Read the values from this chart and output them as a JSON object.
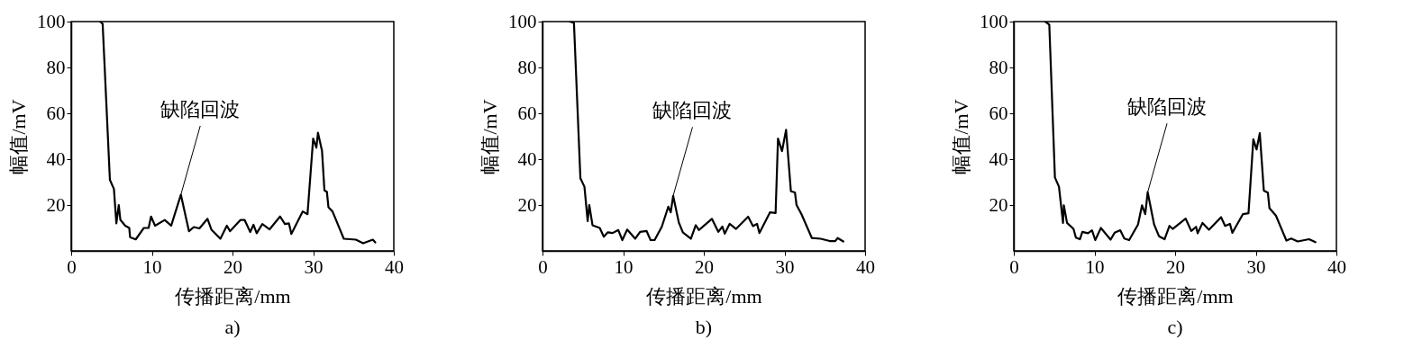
{
  "chart_data": [
    {
      "type": "line",
      "title": "a)",
      "xlabel": "传播距离/mm",
      "ylabel": "幅值/mV",
      "xlim": [
        0,
        40
      ],
      "ylim": [
        0,
        100
      ],
      "xticks": [
        0,
        10,
        20,
        30,
        40
      ],
      "yticks": [
        20,
        40,
        60,
        80,
        100
      ],
      "grid": false,
      "line_style": "solid",
      "annotations": [
        {
          "text": "缺陷回波",
          "x": 13.6,
          "y": 24.5
        }
      ],
      "series": [
        {
          "color": "#000000",
          "x": [
            3.6,
            3.9,
            4.8,
            5.3,
            5.6,
            5.9,
            6.1,
            6.7,
            7.2,
            7.3,
            8.0,
            9.0,
            9.6,
            9.9,
            10.4,
            11.6,
            12.4,
            13.6,
            14.6,
            15.2,
            15.9,
            16.9,
            17.4,
            18.5,
            19.3,
            19.7,
            21.0,
            21.5,
            22.2,
            22.6,
            23.0,
            23.7,
            24.6,
            25.9,
            26.5,
            27.0,
            27.3,
            28.7,
            29.3,
            30.0,
            30.4,
            30.6,
            31.1,
            31.4,
            31.7,
            31.9,
            32.4,
            33.8,
            35.3,
            36.2,
            37.4,
            37.7
          ],
          "values": [
            100,
            99,
            31,
            27,
            12,
            20,
            13.5,
            11,
            10,
            6,
            5,
            10,
            10,
            15,
            11,
            13.5,
            11,
            24.5,
            8.6,
            10.4,
            9.8,
            14,
            9.2,
            5.3,
            11,
            8.6,
            13.5,
            13.5,
            8.2,
            11.4,
            7.7,
            11.7,
            9.4,
            15,
            11.7,
            12,
            7.4,
            17.2,
            16,
            49,
            45,
            51.5,
            43.6,
            26.4,
            25.8,
            19,
            17.2,
            5.3,
            4.9,
            3.3,
            4.9,
            3.7
          ]
        }
      ]
    },
    {
      "type": "line",
      "title": "b)",
      "xlabel": "传播距离/mm",
      "ylabel": "幅值/mV",
      "xlim": [
        0,
        40
      ],
      "ylim": [
        0,
        100
      ],
      "xticks": [
        0,
        10,
        20,
        30,
        40
      ],
      "yticks": [
        20,
        40,
        60,
        80,
        100
      ],
      "grid": false,
      "line_style": "solid",
      "annotations": [
        {
          "text": "缺陷回波",
          "x": 16.2,
          "y": 24
        }
      ],
      "series": [
        {
          "color": "#000000",
          "x": [
            3.4,
            3.9,
            4.7,
            5.2,
            5.6,
            5.8,
            6.2,
            7.1,
            7.6,
            8.1,
            8.7,
            9.4,
            9.9,
            10.5,
            11.5,
            12.1,
            12.9,
            13.4,
            13.9,
            14.8,
            15.6,
            15.9,
            16.2,
            16.9,
            17.4,
            18.4,
            19.0,
            19.4,
            21.0,
            21.8,
            22.3,
            22.6,
            23.2,
            24.0,
            25.5,
            26.1,
            26.6,
            26.9,
            28.2,
            28.9,
            29.2,
            29.7,
            30.2,
            30.8,
            31.3,
            31.5,
            32.1,
            33.4,
            34.5,
            35.6,
            36.3,
            36.6,
            37.3
          ],
          "values": [
            100,
            99.4,
            31.7,
            28,
            13,
            20,
            11.2,
            10,
            6.2,
            8.1,
            7.8,
            9.1,
            4.7,
            9.3,
            5.3,
            8.3,
            8.7,
            4.7,
            4.7,
            10.6,
            19.3,
            16.8,
            24,
            12.4,
            8.1,
            5.3,
            11.2,
            9.1,
            14,
            8.3,
            10.6,
            7.5,
            11.8,
            9.6,
            14.9,
            10.8,
            11.8,
            7.8,
            16.8,
            16.5,
            49,
            43.5,
            52.8,
            26,
            25.5,
            20,
            16.1,
            5.6,
            5.3,
            4.3,
            4.3,
            5.6,
            4.1
          ]
        }
      ]
    },
    {
      "type": "line",
      "title": "c)",
      "xlabel": "传播距离/mm",
      "ylabel": "幅值/mV",
      "xlim": [
        0,
        40
      ],
      "ylim": [
        0,
        100
      ],
      "xticks": [
        0,
        10,
        20,
        30,
        40
      ],
      "yticks": [
        20,
        40,
        60,
        80,
        100
      ],
      "grid": false,
      "line_style": "solid",
      "annotations": [
        {
          "text": "缺陷回波",
          "x": 16.6,
          "y": 25.6
        }
      ],
      "series": [
        {
          "color": "#000000",
          "x": [
            3.9,
            4.4,
            5.1,
            5.6,
            6.1,
            6.2,
            6.6,
            7.4,
            7.7,
            8.2,
            8.5,
            9.2,
            9.7,
            10.1,
            10.8,
            12.0,
            12.5,
            13.2,
            13.7,
            14.3,
            15.4,
            15.9,
            16.3,
            16.6,
            17.4,
            18.0,
            18.7,
            19.3,
            19.7,
            21.3,
            22.0,
            22.6,
            22.8,
            23.4,
            24.2,
            25.7,
            26.2,
            26.8,
            27.1,
            28.4,
            29.1,
            29.7,
            30.1,
            30.5,
            31.0,
            31.5,
            31.7,
            32.5,
            33.8,
            34.4,
            35.2,
            36.6,
            37.4
          ],
          "values": [
            100,
            98.7,
            32,
            28,
            12.2,
            19.9,
            12.2,
            9.6,
            5.8,
            5.1,
            8.3,
            7.7,
            9,
            4.7,
            10,
            4.9,
            7.9,
            9,
            5.4,
            4.7,
            11.5,
            19.9,
            16,
            25.6,
            11.5,
            6.4,
            5.1,
            10.9,
            9.6,
            14.1,
            8.7,
            10.5,
            7.7,
            12.2,
            9.2,
            14.7,
            10.9,
            11.8,
            7.9,
            16,
            16.4,
            48.7,
            44.2,
            51.3,
            26.3,
            25.4,
            18.6,
            15.4,
            4.5,
            5.4,
            4.1,
            5.1,
            3.8
          ]
        }
      ]
    }
  ]
}
